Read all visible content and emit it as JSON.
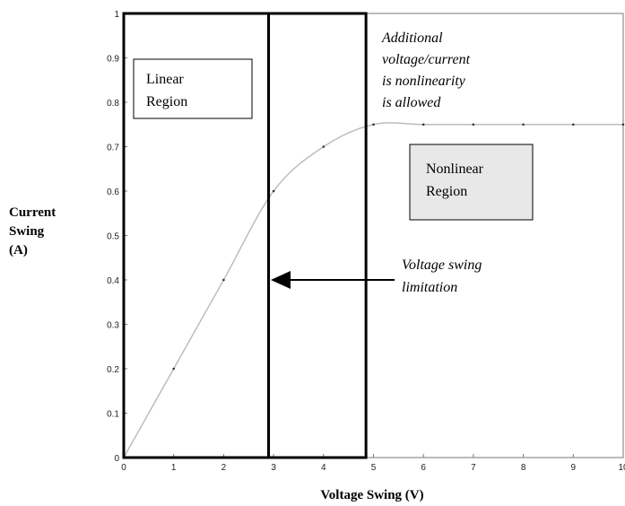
{
  "chart_data": {
    "type": "line",
    "xlabel": "Voltage Swing (V)",
    "ylabel_lines": [
      "Current",
      "Swing",
      "(A)"
    ],
    "xlim": [
      0,
      10
    ],
    "ylim": [
      0,
      1
    ],
    "x_ticks": [
      "0",
      "1",
      "2",
      "3",
      "4",
      "5",
      "6",
      "7",
      "8",
      "9",
      "10"
    ],
    "y_ticks": [
      "0",
      "0.1",
      "0.2",
      "0.3",
      "0.4",
      "0.5",
      "0.6",
      "0.7",
      "0.8",
      "0.9",
      "1"
    ],
    "grid": false,
    "series": [
      {
        "x": [
          0,
          1,
          2,
          3,
          4,
          5,
          6,
          7,
          8,
          9,
          10
        ],
        "y": [
          0,
          0.2,
          0.4,
          0.6,
          0.7,
          0.75,
          0.75,
          0.75,
          0.75,
          0.75,
          0.75
        ],
        "color": "#bdbdbd"
      }
    ],
    "region_boxes": [
      {
        "x_from": 0,
        "x_to": 2.9
      },
      {
        "x_from": 2.9,
        "x_to": 4.85
      }
    ],
    "annotations": {
      "linear_region": [
        "Linear",
        "Region"
      ],
      "nonlinear_region": [
        "Nonlinear",
        "Region"
      ],
      "additional_note": [
        "Additional",
        "voltage/current",
        "is nonlinearity",
        "is allowed"
      ],
      "voltage_limit": [
        "Voltage swing",
        "limitation"
      ]
    },
    "colors": {
      "curve": "#bdbdbd",
      "frame": "#000000",
      "nonlinear_box_fill": "#e8e8e8"
    }
  }
}
